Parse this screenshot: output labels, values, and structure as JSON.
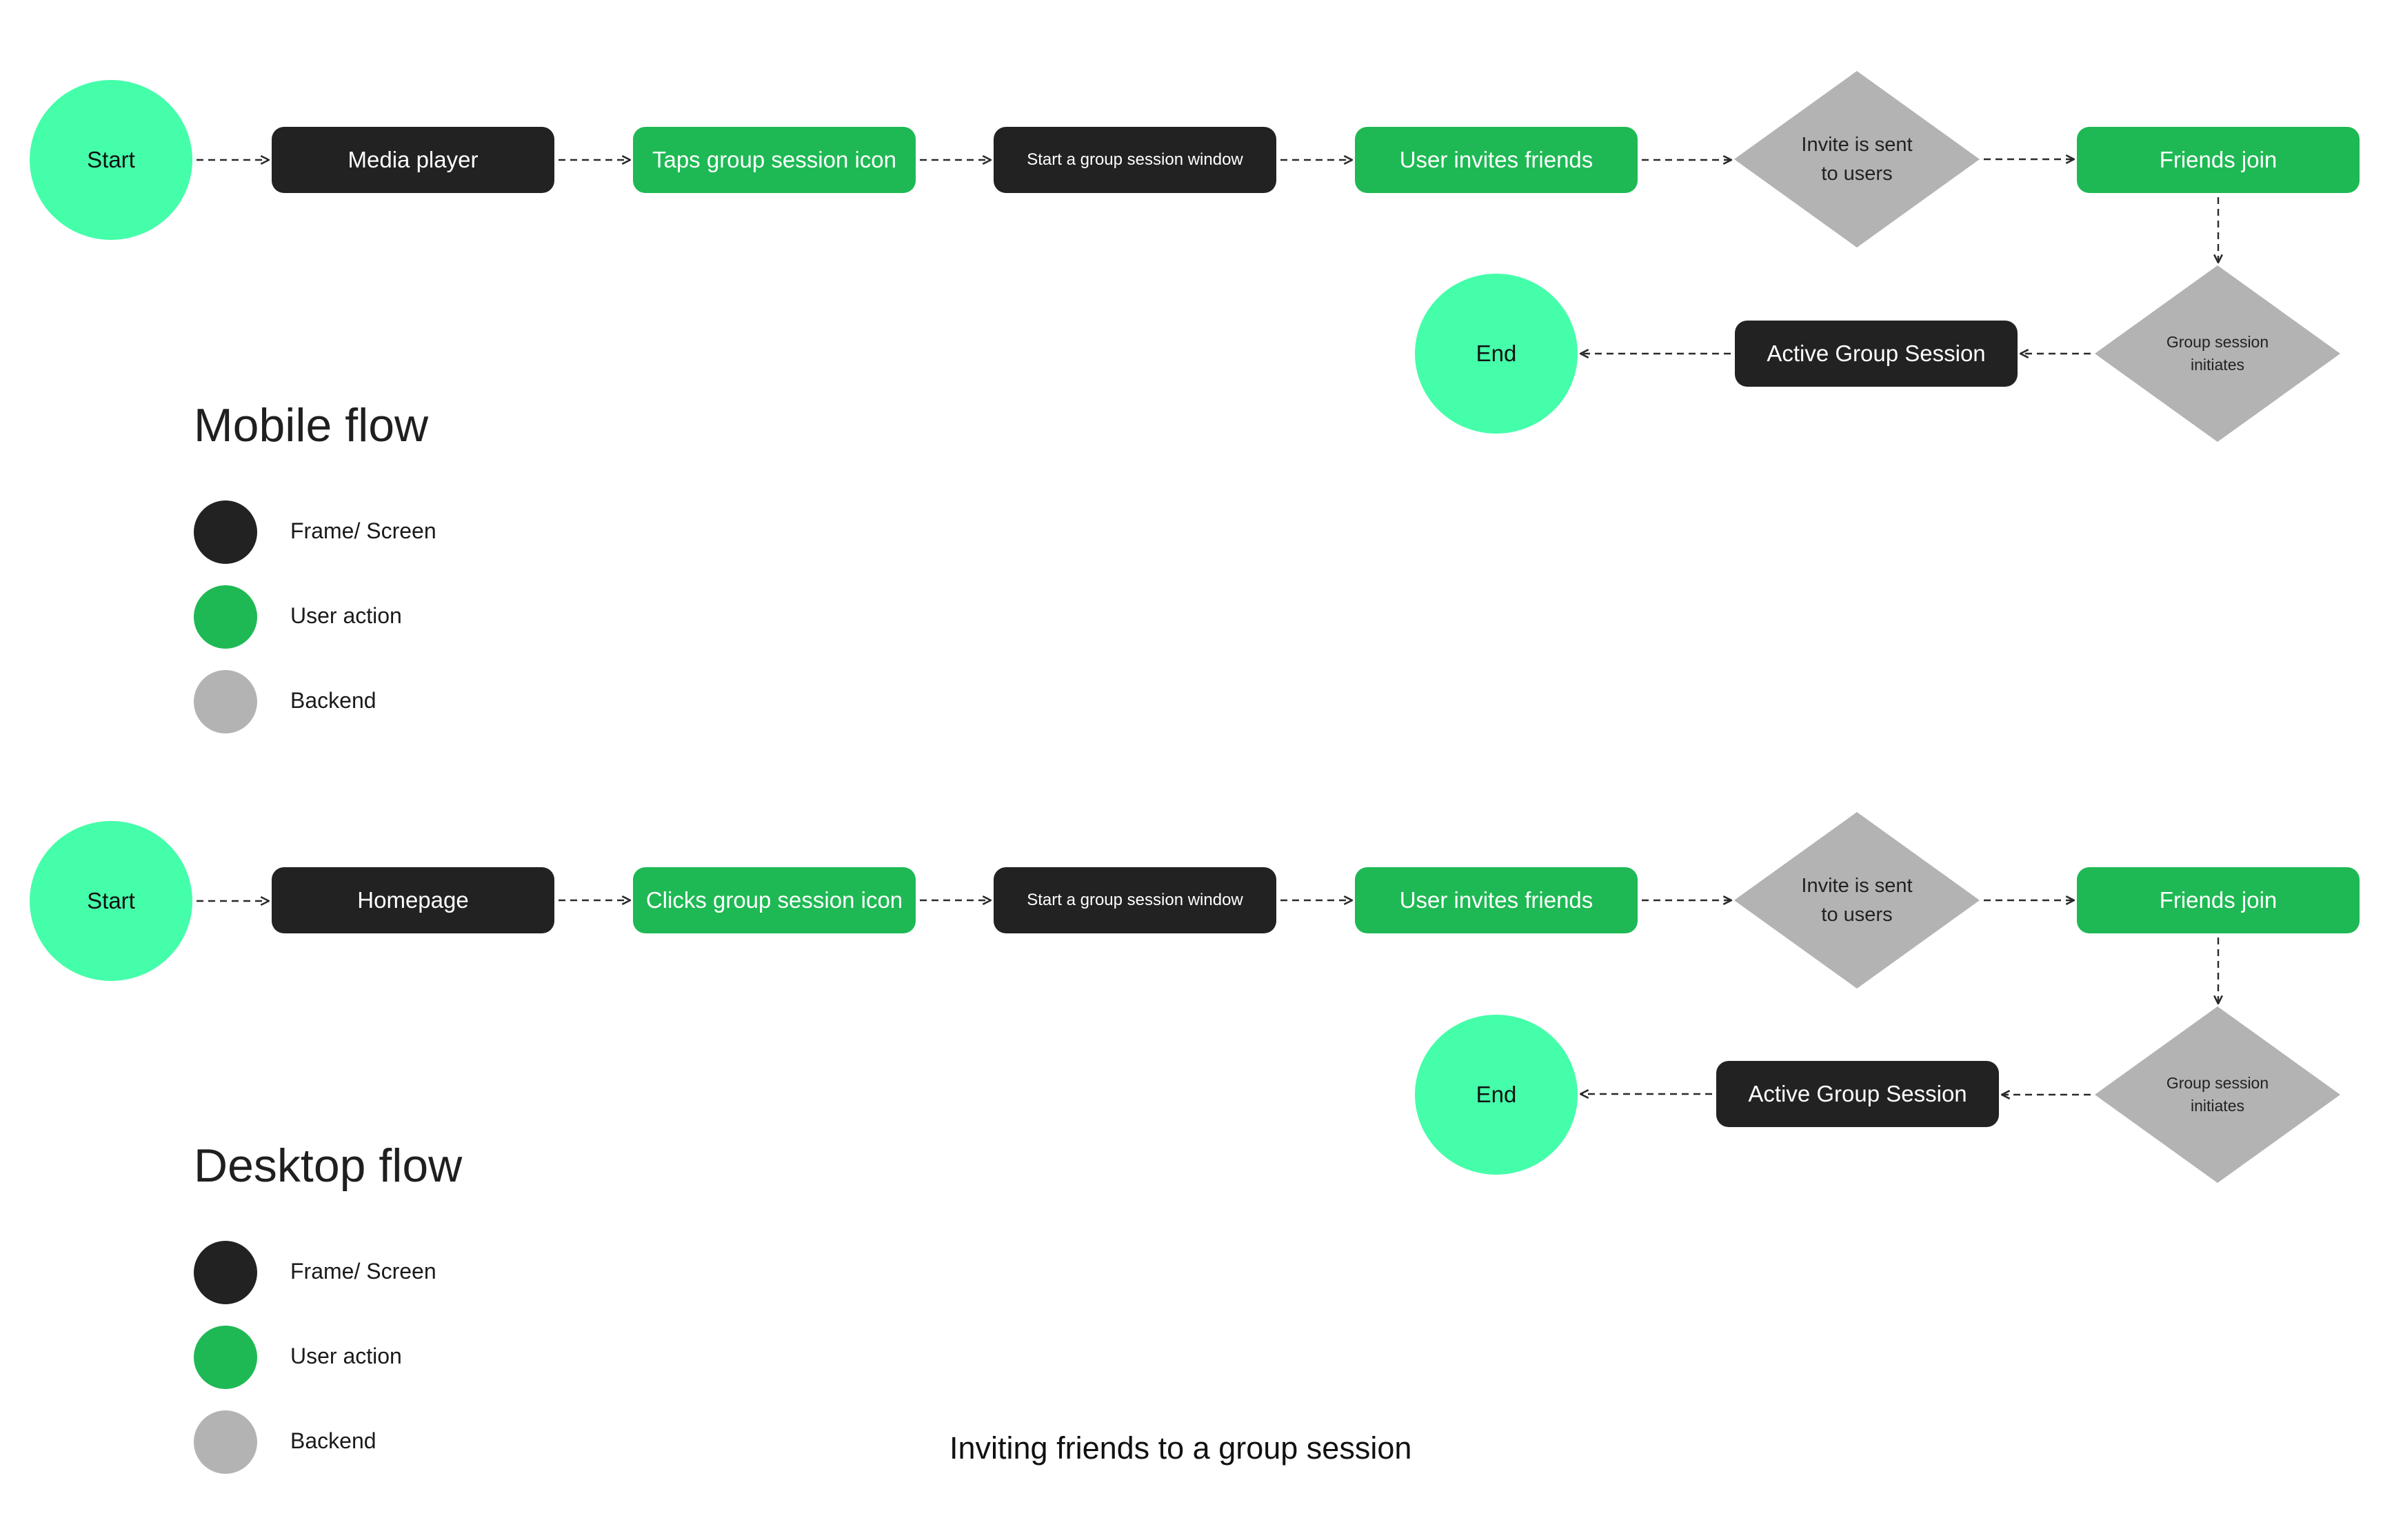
{
  "colors": {
    "terminal": "#45FEAA",
    "frame": "#222222",
    "action": "#1EB954",
    "backend": "#B3B3B3",
    "edge": "#2a2a2a"
  },
  "caption": "Inviting friends to a group session",
  "flows": [
    {
      "title": "Mobile flow",
      "nodes": [
        {
          "id": "start",
          "kind": "terminal",
          "label": "Start"
        },
        {
          "id": "n1",
          "kind": "frame",
          "label": "Media player"
        },
        {
          "id": "n2",
          "kind": "action",
          "label": "Taps group session icon"
        },
        {
          "id": "n3",
          "kind": "frame",
          "label": "Start a group session window"
        },
        {
          "id": "n4",
          "kind": "action",
          "label": "User invites friends"
        },
        {
          "id": "d1",
          "kind": "backend",
          "label": "Invite is sent\nto users"
        },
        {
          "id": "n5",
          "kind": "action",
          "label": "Friends join"
        },
        {
          "id": "d2",
          "kind": "backend",
          "label": "Group session\ninitiates"
        },
        {
          "id": "n6",
          "kind": "frame",
          "label": "Active Group Session"
        },
        {
          "id": "end",
          "kind": "terminal",
          "label": "End"
        }
      ],
      "edges": [
        [
          "start",
          "n1"
        ],
        [
          "n1",
          "n2"
        ],
        [
          "n2",
          "n3"
        ],
        [
          "n3",
          "n4"
        ],
        [
          "n4",
          "d1"
        ],
        [
          "d1",
          "n5"
        ],
        [
          "n5",
          "d2"
        ],
        [
          "d2",
          "n6"
        ],
        [
          "n6",
          "end"
        ]
      ],
      "legend": [
        {
          "kind": "frame",
          "label": "Frame/ Screen"
        },
        {
          "kind": "action",
          "label": "User action"
        },
        {
          "kind": "backend",
          "label": "Backend"
        }
      ]
    },
    {
      "title": "Desktop flow",
      "nodes": [
        {
          "id": "start",
          "kind": "terminal",
          "label": "Start"
        },
        {
          "id": "n1",
          "kind": "frame",
          "label": "Homepage"
        },
        {
          "id": "n2",
          "kind": "action",
          "label": "Clicks group session icon"
        },
        {
          "id": "n3",
          "kind": "frame",
          "label": "Start a group session window"
        },
        {
          "id": "n4",
          "kind": "action",
          "label": "User invites friends"
        },
        {
          "id": "d1",
          "kind": "backend",
          "label": "Invite is sent\nto users"
        },
        {
          "id": "n5",
          "kind": "action",
          "label": "Friends join"
        },
        {
          "id": "d2",
          "kind": "backend",
          "label": "Group session\ninitiates"
        },
        {
          "id": "n6",
          "kind": "frame",
          "label": "Active Group Session"
        },
        {
          "id": "end",
          "kind": "terminal",
          "label": "End"
        }
      ],
      "edges": [
        [
          "start",
          "n1"
        ],
        [
          "n1",
          "n2"
        ],
        [
          "n2",
          "n3"
        ],
        [
          "n3",
          "n4"
        ],
        [
          "n4",
          "d1"
        ],
        [
          "d1",
          "n5"
        ],
        [
          "n5",
          "d2"
        ],
        [
          "d2",
          "n6"
        ],
        [
          "n6",
          "end"
        ]
      ],
      "legend": [
        {
          "kind": "frame",
          "label": "Frame/ Screen"
        },
        {
          "kind": "action",
          "label": "User action"
        },
        {
          "kind": "backend",
          "label": "Backend"
        }
      ]
    }
  ]
}
